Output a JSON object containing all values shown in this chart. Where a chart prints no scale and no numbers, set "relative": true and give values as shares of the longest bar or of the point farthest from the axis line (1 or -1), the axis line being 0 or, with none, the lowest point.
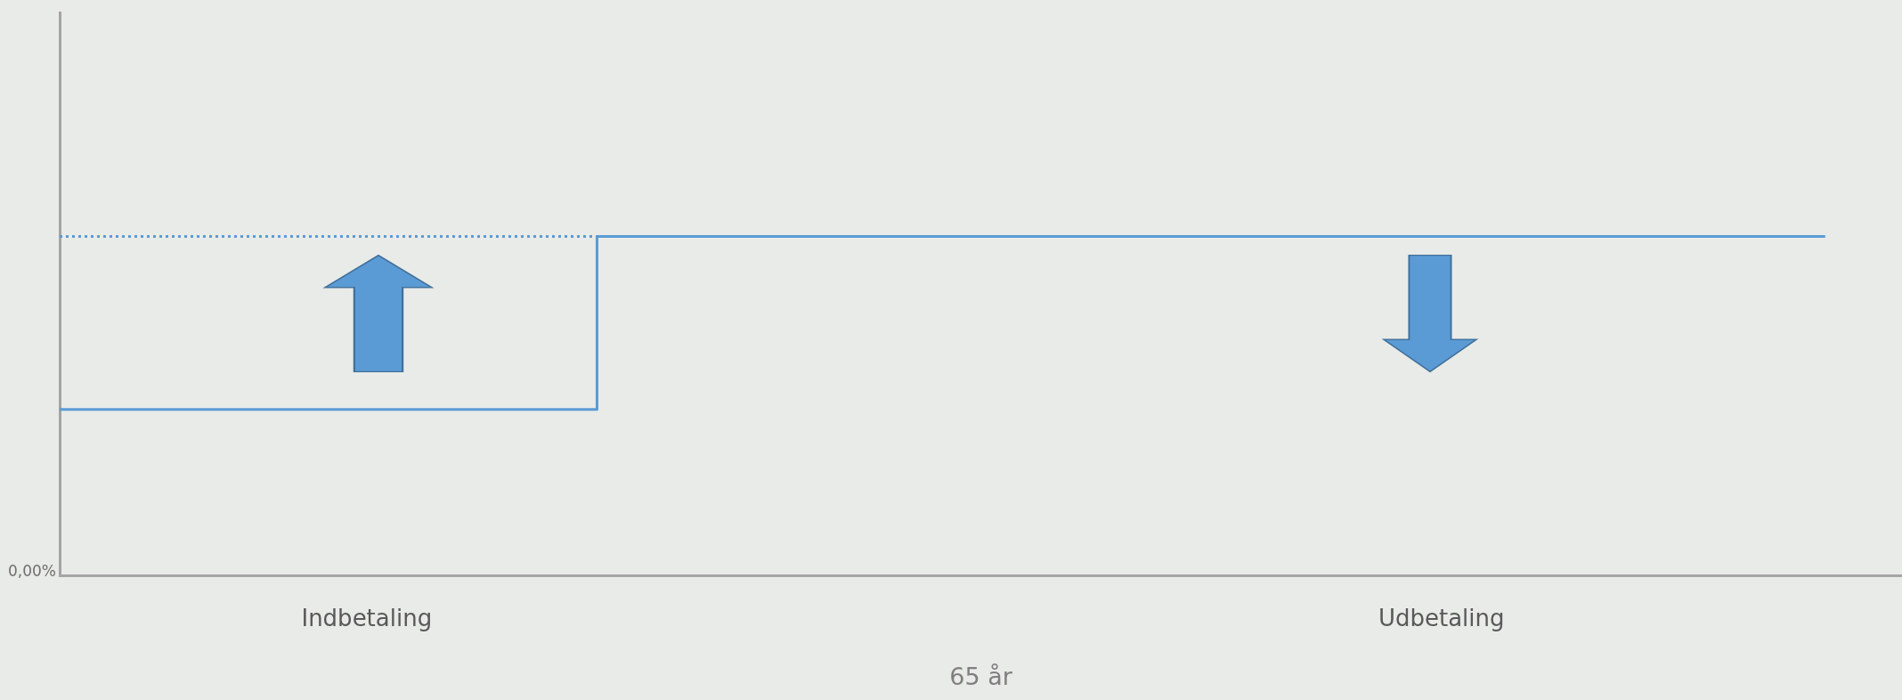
{
  "chart_data": {
    "type": "step",
    "relative": true,
    "xlabel": "65 år",
    "categories": [
      null,
      null,
      null,
      null,
      "Indbetaling",
      null,
      null,
      null,
      null,
      null,
      null,
      null,
      null,
      null,
      null,
      null,
      null,
      null,
      "Udbetaling",
      null,
      null,
      null,
      null,
      null,
      null
    ],
    "series": [
      {
        "color": "#5b9bd5",
        "values": [
          0.49,
          0.49,
          0.49,
          0.49,
          0.49,
          0.49,
          0.49,
          0.49,
          1,
          1,
          1,
          1,
          1,
          1,
          1,
          1,
          1,
          1,
          1,
          1,
          1,
          1,
          1,
          1,
          null
        ],
        "line_style": "solid"
      },
      {
        "type": "line",
        "color": "#5b9bd5",
        "values": [
          1,
          1,
          1,
          1,
          1,
          1,
          1,
          1,
          1,
          null,
          null,
          null,
          null,
          null,
          null,
          null,
          null,
          null,
          null,
          null,
          null,
          null,
          null,
          null,
          null
        ],
        "line_style": "dotted"
      }
    ],
    "annotations": [
      "0,00%"
    ],
    "grid": false,
    "legend": false,
    "marker": "none"
  }
}
